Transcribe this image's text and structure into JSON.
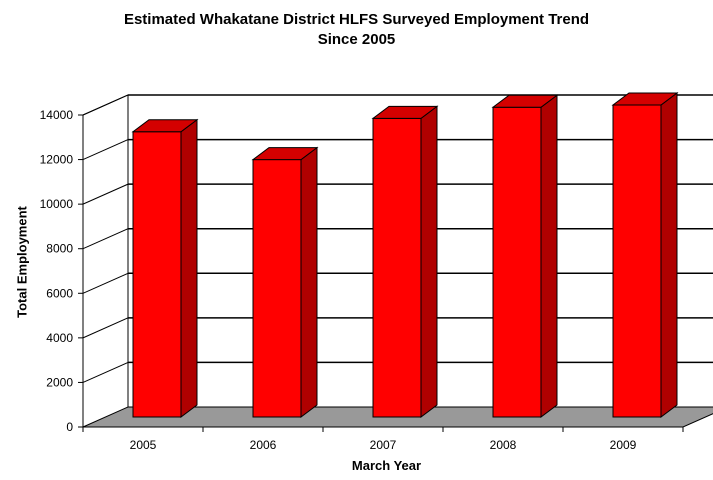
{
  "chart_data": {
    "type": "bar",
    "title": [
      "Estimated Whakatane District HLFS Surveyed Employment Trend",
      "Since 2005"
    ],
    "xlabel": "March Year",
    "ylabel": "Total Employment",
    "categories": [
      "2005",
      "2006",
      "2007",
      "2008",
      "2009"
    ],
    "values": [
      12800,
      11550,
      13400,
      13900,
      14000
    ],
    "ylim": [
      0,
      14000
    ],
    "yticks": [
      "0",
      "2000",
      "4000",
      "6000",
      "8000",
      "10000",
      "12000",
      "14000"
    ],
    "grid": true,
    "bar_color": "#ff0000",
    "bar_side_color": "#b00000",
    "bar_top_color": "#d40000",
    "floor_color": "#999999"
  }
}
